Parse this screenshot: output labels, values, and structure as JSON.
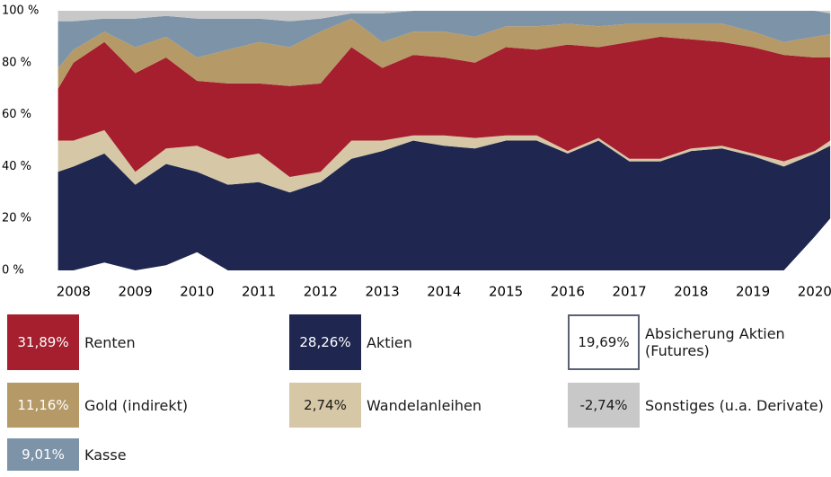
{
  "chart_data": {
    "type": "area",
    "x": [
      2007.75,
      2008,
      2008.5,
      2009,
      2009.5,
      2010,
      2010.5,
      2011,
      2011.5,
      2012,
      2012.5,
      2013,
      2013.5,
      2014,
      2014.5,
      2015,
      2015.5,
      2016,
      2016.5,
      2017,
      2017.5,
      2018,
      2018.5,
      2019,
      2019.5,
      2020,
      2020.25
    ],
    "xlim": [
      2007.77,
      2020.22
    ],
    "xticks": [
      2008,
      2009,
      2010,
      2011,
      2012,
      2013,
      2014,
      2015,
      2016,
      2017,
      2018,
      2019,
      2020
    ],
    "ylim": [
      0,
      100
    ],
    "yticks": [
      {
        "value": 0,
        "label": "0 %"
      },
      {
        "value": 20,
        "label": "20 %"
      },
      {
        "value": 40,
        "label": "40 %"
      },
      {
        "value": 60,
        "label": "60 %"
      },
      {
        "value": 80,
        "label": "80 %"
      },
      {
        "value": 100,
        "label": "100 %"
      }
    ],
    "stacked": true,
    "series": [
      {
        "name": "Renten",
        "color": "#a51f2e",
        "share": 31.89,
        "share_label": "31,89%",
        "values": [
          20,
          30,
          34,
          38,
          35,
          25,
          29,
          27,
          35,
          34,
          36,
          28,
          31,
          30,
          29,
          34,
          33,
          41,
          35,
          45,
          47,
          42,
          40,
          41,
          41,
          36,
          32
        ]
      },
      {
        "name": "Aktien",
        "color": "#1f2750",
        "share": 28.26,
        "share_label": "28,26%",
        "values": [
          38,
          40,
          42,
          33,
          39,
          31,
          33,
          34,
          30,
          34,
          43,
          46,
          50,
          48,
          47,
          50,
          50,
          45,
          50,
          42,
          42,
          46,
          47,
          44,
          40,
          32,
          28
        ]
      },
      {
        "name": "Absicherung Aktien (Futures)",
        "color": "#ffffff",
        "share": 19.69,
        "share_label": "19,69%",
        "values": [
          0,
          0,
          3,
          0,
          2,
          7,
          0,
          0,
          0,
          0,
          0,
          0,
          0,
          0,
          0,
          0,
          0,
          0,
          0,
          0,
          0,
          0,
          0,
          0,
          0,
          13,
          20
        ]
      },
      {
        "name": "Gold (indirekt)",
        "color": "#b59a68",
        "share": 11.16,
        "share_label": "11,16%",
        "values": [
          8,
          5,
          4,
          10,
          8,
          9,
          13,
          16,
          15,
          20,
          11,
          10,
          9,
          10,
          10,
          8,
          9,
          8,
          8,
          7,
          5,
          6,
          7,
          6,
          5,
          8,
          9
        ]
      },
      {
        "name": "Kasse",
        "color": "#7c93a8",
        "share": 9.01,
        "share_label": "9,01%",
        "values": [
          18,
          11,
          5,
          11,
          8,
          15,
          12,
          9,
          10,
          5,
          2,
          11,
          8,
          8,
          10,
          6,
          6,
          5,
          6,
          5,
          5,
          5,
          5,
          8,
          12,
          10,
          8
        ]
      },
      {
        "name": "Wandelanleihen",
        "color": "#d6c7a6",
        "share": 2.74,
        "share_label": "2,74%",
        "values": [
          12,
          10,
          9,
          5,
          6,
          10,
          10,
          11,
          6,
          4,
          7,
          4,
          2,
          4,
          4,
          2,
          2,
          1,
          1,
          1,
          1,
          1,
          1,
          1,
          2,
          1,
          2
        ]
      },
      {
        "name": "Sonstiges (u.a. Derivate)",
        "color": "#c8c8c8",
        "share": -2.74,
        "share_label": "-2,74%",
        "values": [
          4,
          4,
          3,
          3,
          2,
          3,
          3,
          3,
          4,
          3,
          1,
          1,
          0,
          0,
          0,
          0,
          0,
          0,
          0,
          0,
          0,
          0,
          0,
          0,
          0,
          0,
          1
        ]
      }
    ]
  }
}
